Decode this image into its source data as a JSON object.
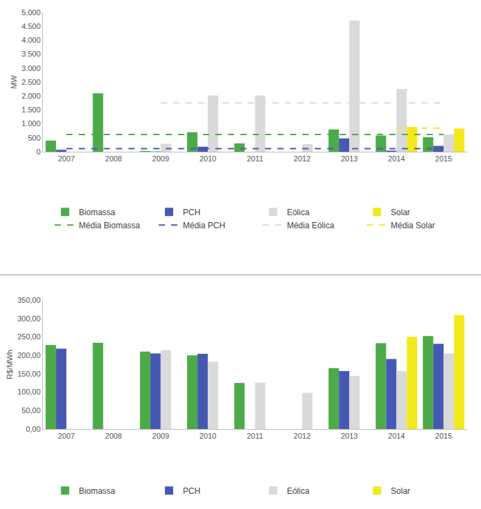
{
  "chart_data": [
    {
      "type": "bar",
      "y_label": "MW",
      "categories": [
        "2007",
        "2008",
        "2009",
        "2010",
        "2011",
        "2012",
        "2013",
        "2014",
        "2015"
      ],
      "series": [
        {
          "name": "Biomassa",
          "color": "#4caa48",
          "values": [
            400,
            2100,
            30,
            700,
            300,
            null,
            800,
            580,
            520
          ]
        },
        {
          "name": "PCH",
          "color": "#4659b2",
          "values": [
            70,
            null,
            10,
            180,
            null,
            null,
            480,
            40,
            210
          ]
        },
        {
          "name": "Eólica",
          "color": "#dadada",
          "values": [
            null,
            null,
            290,
            2020,
            2020,
            270,
            4710,
            2250,
            620
          ]
        },
        {
          "name": "Solar",
          "color": "#f2ea1d",
          "values": [
            null,
            null,
            null,
            null,
            null,
            null,
            null,
            890,
            830
          ]
        },
        {
          "name": "Média Biomassa",
          "type": "line",
          "line_style": "dashed",
          "color": "#4caa48",
          "values": [
            620,
            620,
            620,
            620,
            620,
            620,
            620,
            620,
            620
          ]
        },
        {
          "name": "Média PCH",
          "type": "line",
          "line_style": "dashed",
          "color": "#4659b2",
          "values": [
            110,
            110,
            110,
            110,
            110,
            110,
            110,
            110,
            110
          ]
        },
        {
          "name": "Média Eólica",
          "type": "line",
          "line_style": "dashed",
          "color": "#dadada",
          "values": [
            null,
            null,
            1750,
            1750,
            1750,
            1750,
            1750,
            1750,
            1750
          ]
        },
        {
          "name": "Média Solar",
          "type": "line",
          "line_style": "dashed",
          "color": "#f2ea1d",
          "values": [
            null,
            null,
            null,
            null,
            null,
            null,
            null,
            850,
            850
          ]
        }
      ],
      "ylim": [
        0,
        5000
      ],
      "yticks": [
        0,
        500,
        {
          "value": 1000,
          "label": "1.000"
        },
        {
          "value": 1500,
          "label": "1.500"
        },
        {
          "value": 2000,
          "label": "2.000"
        },
        {
          "value": 2500,
          "label": "2.500"
        },
        {
          "value": 3000,
          "label": "3.000"
        },
        {
          "value": 3500,
          "label": "3.500"
        },
        {
          "value": 4000,
          "label": "4.000"
        },
        {
          "value": 4500,
          "label": "4.500"
        },
        {
          "value": 5000,
          "label": "5.000"
        }
      ],
      "grid": false,
      "legend": "bottom"
    },
    {
      "type": "bar",
      "y_label": "R$/MWh",
      "categories": [
        "2007",
        "2008",
        "2009",
        "2010",
        "2011",
        "2012",
        "2013",
        "2014",
        "2015"
      ],
      "series": [
        {
          "name": "Biomassa",
          "color": "#4caa48",
          "values": [
            228,
            234,
            210,
            200,
            125,
            null,
            165,
            233,
            252
          ]
        },
        {
          "name": "PCH",
          "color": "#4659b2",
          "values": [
            218,
            null,
            205,
            204,
            null,
            null,
            157,
            190,
            231
          ]
        },
        {
          "name": "Eólica",
          "color": "#dadada",
          "values": [
            null,
            null,
            214,
            183,
            126,
            98,
            144,
            157,
            205
          ]
        },
        {
          "name": "Solar",
          "color": "#f2ea1d",
          "values": [
            null,
            null,
            null,
            null,
            null,
            null,
            null,
            250,
            309
          ]
        }
      ],
      "ylim": [
        0,
        350
      ],
      "yticks": [
        {
          "value": 0,
          "label": "0,00"
        },
        {
          "value": 50,
          "label": "50,00"
        },
        {
          "value": 100,
          "label": "100,00"
        },
        {
          "value": 150,
          "label": "150,00"
        },
        {
          "value": 200,
          "label": "200,00"
        },
        {
          "value": 250,
          "label": "250,00"
        },
        {
          "value": 300,
          "label": "300,00"
        },
        {
          "value": 350,
          "label": "350,00"
        }
      ],
      "grid": false,
      "legend": "bottom"
    }
  ]
}
